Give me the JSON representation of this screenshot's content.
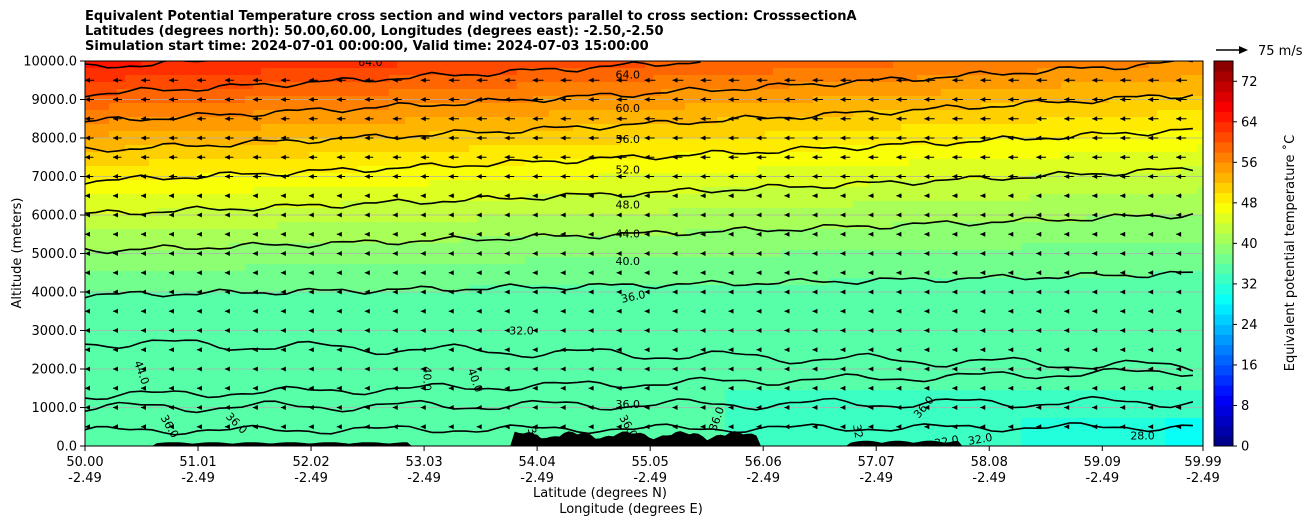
{
  "title_lines": [
    "Equivalent Potential Temperature cross section and wind vectors parallel to cross section: CrosssectionA",
    "Latitudes (degrees north): 50.00,60.00, Longitudes (degrees east): -2.50,-2.50",
    "Simulation start time: 2024-07-01 00:00:00, Valid time: 2024-07-03 15:00:00"
  ],
  "chart_data": {
    "type": "heatmap",
    "title": "Equivalent Potential Temperature cross section and wind vectors parallel to cross section: CrosssectionA",
    "xlabel": "Latitude (degrees N)",
    "xlabel2": "Longitude (degrees E)",
    "ylabel": "Altitude (meters)",
    "xlim": [
      50.0,
      59.99
    ],
    "ylim": [
      0,
      10000
    ],
    "grid": "horizontal",
    "x_ticks": [
      {
        "lat": "50.00",
        "lon": "-2.49"
      },
      {
        "lat": "51.01",
        "lon": "-2.49"
      },
      {
        "lat": "52.02",
        "lon": "-2.49"
      },
      {
        "lat": "53.03",
        "lon": "-2.49"
      },
      {
        "lat": "54.04",
        "lon": "-2.49"
      },
      {
        "lat": "55.05",
        "lon": "-2.49"
      },
      {
        "lat": "56.06",
        "lon": "-2.49"
      },
      {
        "lat": "57.07",
        "lon": "-2.49"
      },
      {
        "lat": "58.08",
        "lon": "-2.49"
      },
      {
        "lat": "59.09",
        "lon": "-2.49"
      },
      {
        "lat": "59.99",
        "lon": "-2.49"
      }
    ],
    "y_ticks": [
      "0.0",
      "1000.0",
      "2000.0",
      "3000.0",
      "4000.0",
      "5000.0",
      "6000.0",
      "7000.0",
      "8000.0",
      "9000.0",
      "10000.0"
    ],
    "colorbar": {
      "label": "Equivalent potential temperature $^\\circ$C",
      "label_text": "Equivalent potential temperature ˚C",
      "min": 0,
      "max": 76,
      "ticks": [
        "0",
        "8",
        "16",
        "24",
        "32",
        "40",
        "48",
        "56",
        "64",
        "72"
      ],
      "colormap": "jet"
    },
    "quiver_key": {
      "label": "75 m/s",
      "value": 75
    },
    "contour_labels": [
      {
        "text": "64.0",
        "lat": 54.85,
        "alt": 9620,
        "angle": 0
      },
      {
        "text": "64.0",
        "lat": 52.55,
        "alt": 9950,
        "angle": 0
      },
      {
        "text": "60.0",
        "lat": 54.85,
        "alt": 8750,
        "angle": 0
      },
      {
        "text": "56.0",
        "lat": 54.85,
        "alt": 7950,
        "angle": 0
      },
      {
        "text": "52.0",
        "lat": 54.85,
        "alt": 7150,
        "angle": 0
      },
      {
        "text": "48.0",
        "lat": 54.85,
        "alt": 6250,
        "angle": 0
      },
      {
        "text": "44.0",
        "lat": 54.85,
        "alt": 5500,
        "angle": 0
      },
      {
        "text": "40.0",
        "lat": 54.85,
        "alt": 4780,
        "angle": 0
      },
      {
        "text": "36.0",
        "lat": 54.9,
        "alt": 3860,
        "angle": -12
      },
      {
        "text": "32.0",
        "lat": 53.9,
        "alt": 2980,
        "angle": 0
      },
      {
        "text": "44.0",
        "lat": 50.5,
        "alt": 1900,
        "angle": 70
      },
      {
        "text": "40.0",
        "lat": 53.05,
        "alt": 1750,
        "angle": 90
      },
      {
        "text": "40.0",
        "lat": 53.48,
        "alt": 1700,
        "angle": 70
      },
      {
        "text": "36.0",
        "lat": 54.85,
        "alt": 1060,
        "angle": 0
      },
      {
        "text": "36.0",
        "lat": 50.75,
        "alt": 500,
        "angle": 60
      },
      {
        "text": "36.0",
        "lat": 51.35,
        "alt": 580,
        "angle": 45
      },
      {
        "text": "36",
        "lat": 54.0,
        "alt": 300,
        "angle": 70
      },
      {
        "text": "36.0",
        "lat": 54.85,
        "alt": 500,
        "angle": 60
      },
      {
        "text": "36.0",
        "lat": 55.65,
        "alt": 700,
        "angle": -70
      },
      {
        "text": "32",
        "lat": 56.9,
        "alt": 380,
        "angle": 80
      },
      {
        "text": "36.0",
        "lat": 57.5,
        "alt": 1000,
        "angle": -50
      },
      {
        "text": "32.0",
        "lat": 57.7,
        "alt": 100,
        "angle": -10
      },
      {
        "text": "32.0",
        "lat": 58.0,
        "alt": 160,
        "angle": -10
      },
      {
        "text": "28.0",
        "lat": 59.45,
        "alt": 250,
        "angle": 0
      }
    ]
  }
}
